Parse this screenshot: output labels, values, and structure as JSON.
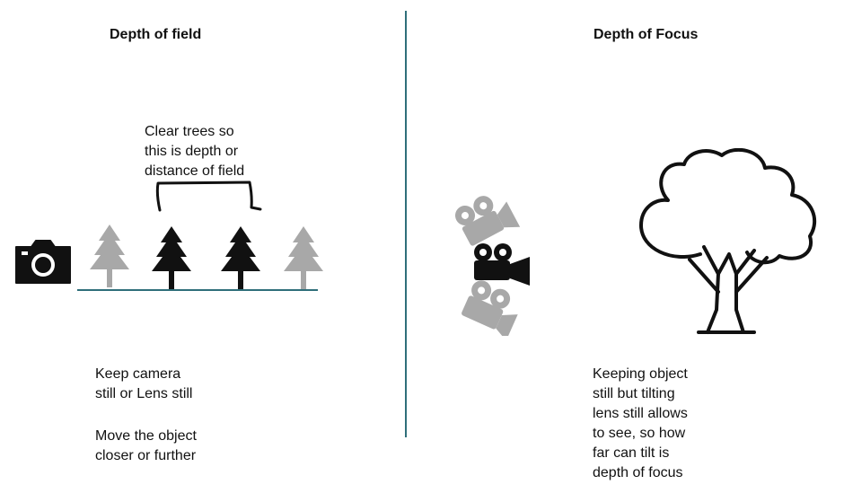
{
  "left": {
    "title": "Depth of field",
    "annotation": "Clear trees so\nthis is depth or\ndistance of field",
    "instructions_1": "Keep camera\nstill or Lens still",
    "instructions_2": "Move the object\ncloser or further",
    "icons": [
      "camera-icon",
      "blurred-tree-icon",
      "sharp-tree-icon",
      "sharp-tree-icon",
      "blurred-tree-icon"
    ]
  },
  "right": {
    "title": "Depth of Focus",
    "explanation": "Keeping object\nstill but tilting\nlens still allows\nto see, so how\nfar can tilt is\ndepth of focus",
    "icons": [
      "movie-camera-icon",
      "tree-outline-icon"
    ]
  },
  "colors": {
    "divider": "#2f6f7a",
    "sharp": "#111111",
    "blurred": "#a8a8a8"
  }
}
